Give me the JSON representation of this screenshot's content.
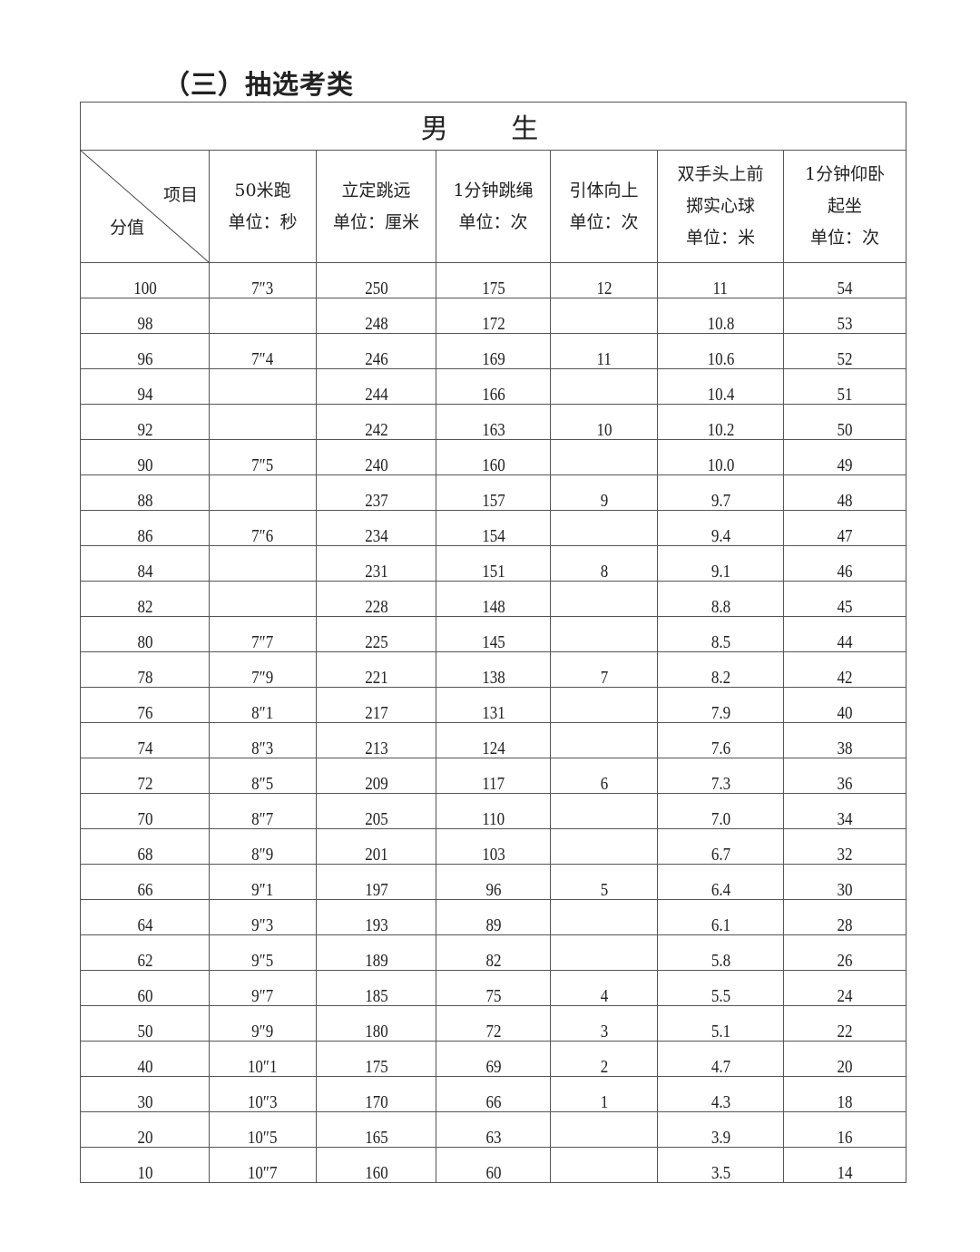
{
  "section_title": "（三）抽选考类",
  "table": {
    "group_header": "男 生",
    "corner": {
      "top_right": "项目",
      "bottom_left": "分值"
    },
    "columns": [
      {
        "name": "50米跑",
        "unit": "单位：秒"
      },
      {
        "name": "立定跳远",
        "unit": "单位：厘米"
      },
      {
        "name": "1分钟跳绳",
        "unit": "单位：次"
      },
      {
        "name": "引体向上",
        "unit": "单位：次"
      },
      {
        "name": "双手头上前掷实心球",
        "unit": "单位：米"
      },
      {
        "name": "1分钟仰卧起坐",
        "unit": "单位：次"
      }
    ],
    "rows": [
      [
        "100",
        "7″3",
        "250",
        "175",
        "12",
        "11",
        "54"
      ],
      [
        "98",
        "",
        "248",
        "172",
        "",
        "10.8",
        "53"
      ],
      [
        "96",
        "7″4",
        "246",
        "169",
        "11",
        "10.6",
        "52"
      ],
      [
        "94",
        "",
        "244",
        "166",
        "",
        "10.4",
        "51"
      ],
      [
        "92",
        "",
        "242",
        "163",
        "10",
        "10.2",
        "50"
      ],
      [
        "90",
        "7″5",
        "240",
        "160",
        "",
        "10.0",
        "49"
      ],
      [
        "88",
        "",
        "237",
        "157",
        "9",
        "9.7",
        "48"
      ],
      [
        "86",
        "7″6",
        "234",
        "154",
        "",
        "9.4",
        "47"
      ],
      [
        "84",
        "",
        "231",
        "151",
        "8",
        "9.1",
        "46"
      ],
      [
        "82",
        "",
        "228",
        "148",
        "",
        "8.8",
        "45"
      ],
      [
        "80",
        "7″7",
        "225",
        "145",
        "",
        "8.5",
        "44"
      ],
      [
        "78",
        "7″9",
        "221",
        "138",
        "7",
        "8.2",
        "42"
      ],
      [
        "76",
        "8″1",
        "217",
        "131",
        "",
        "7.9",
        "40"
      ],
      [
        "74",
        "8″3",
        "213",
        "124",
        "",
        "7.6",
        "38"
      ],
      [
        "72",
        "8″5",
        "209",
        "117",
        "6",
        "7.3",
        "36"
      ],
      [
        "70",
        "8″7",
        "205",
        "110",
        "",
        "7.0",
        "34"
      ],
      [
        "68",
        "8″9",
        "201",
        "103",
        "",
        "6.7",
        "32"
      ],
      [
        "66",
        "9″1",
        "197",
        "96",
        "5",
        "6.4",
        "30"
      ],
      [
        "64",
        "9″3",
        "193",
        "89",
        "",
        "6.1",
        "28"
      ],
      [
        "62",
        "9″5",
        "189",
        "82",
        "",
        "5.8",
        "26"
      ],
      [
        "60",
        "9″7",
        "185",
        "75",
        "4",
        "5.5",
        "24"
      ],
      [
        "50",
        "9″9",
        "180",
        "72",
        "3",
        "5.1",
        "22"
      ],
      [
        "40",
        "10″1",
        "175",
        "69",
        "2",
        "4.7",
        "20"
      ],
      [
        "30",
        "10″3",
        "170",
        "66",
        "1",
        "4.3",
        "18"
      ],
      [
        "20",
        "10″5",
        "165",
        "63",
        "",
        "3.9",
        "16"
      ],
      [
        "10",
        "10″7",
        "160",
        "60",
        "",
        "3.5",
        "14"
      ]
    ]
  }
}
